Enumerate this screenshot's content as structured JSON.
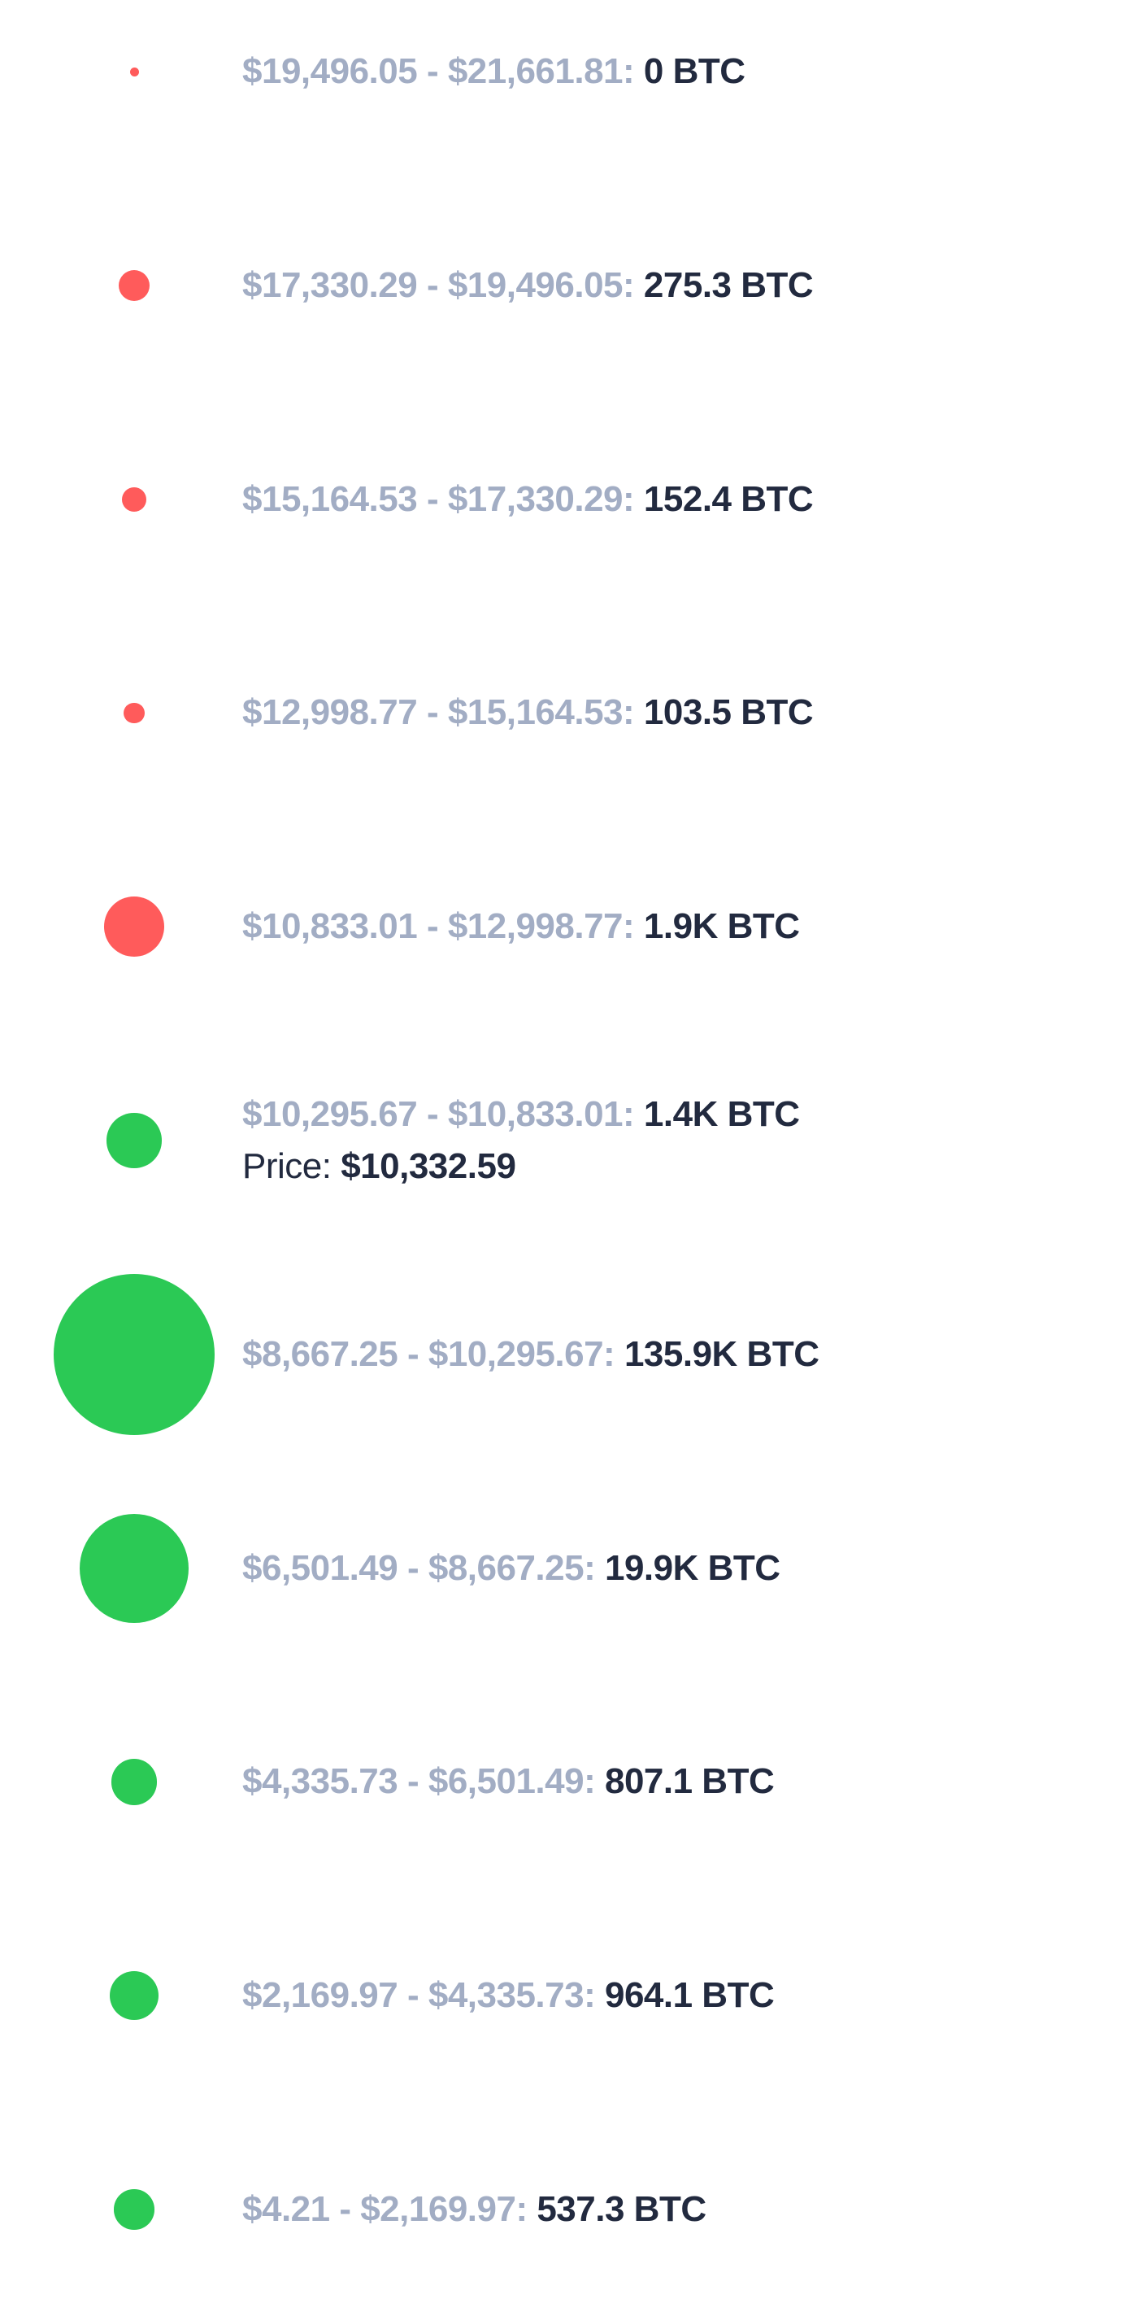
{
  "colors": {
    "sell": "#ff5b5b",
    "buy": "#2bc955",
    "range_text": "#a2adc4",
    "value_text": "#222a3f"
  },
  "chart_data": {
    "type": "bubble",
    "orientation": "vertical",
    "unit": "BTC",
    "current_price": {
      "label": "Price:",
      "value": "$10,332.59",
      "row_index": 5
    },
    "ranges": [
      {
        "low": "$19,496.05",
        "high": "$21,661.81",
        "volume_label": "0 BTC",
        "volume": 0,
        "side": "sell"
      },
      {
        "low": "$17,330.29",
        "high": "$19,496.05",
        "volume_label": "275.3 BTC",
        "volume": 275.3,
        "side": "sell"
      },
      {
        "low": "$15,164.53",
        "high": "$17,330.29",
        "volume_label": "152.4 BTC",
        "volume": 152.4,
        "side": "sell"
      },
      {
        "low": "$12,998.77",
        "high": "$15,164.53",
        "volume_label": "103.5 BTC",
        "volume": 103.5,
        "side": "sell"
      },
      {
        "low": "$10,833.01",
        "high": "$12,998.77",
        "volume_label": "1.9K BTC",
        "volume": 1900,
        "side": "sell"
      },
      {
        "low": "$10,295.67",
        "high": "$10,833.01",
        "volume_label": "1.4K BTC",
        "volume": 1400,
        "side": "buy"
      },
      {
        "low": "$8,667.25",
        "high": "$10,295.67",
        "volume_label": "135.9K BTC",
        "volume": 135900,
        "side": "buy"
      },
      {
        "low": "$6,501.49",
        "high": "$8,667.25",
        "volume_label": "19.9K BTC",
        "volume": 19900,
        "side": "buy"
      },
      {
        "low": "$4,335.73",
        "high": "$6,501.49",
        "volume_label": "807.1 BTC",
        "volume": 807.1,
        "side": "buy"
      },
      {
        "low": "$2,169.97",
        "high": "$4,335.73",
        "volume_label": "964.1 BTC",
        "volume": 964.1,
        "side": "buy"
      },
      {
        "low": "$4.21",
        "high": "$2,169.97",
        "volume_label": "537.3 BTC",
        "volume": 537.3,
        "side": "buy"
      }
    ]
  }
}
